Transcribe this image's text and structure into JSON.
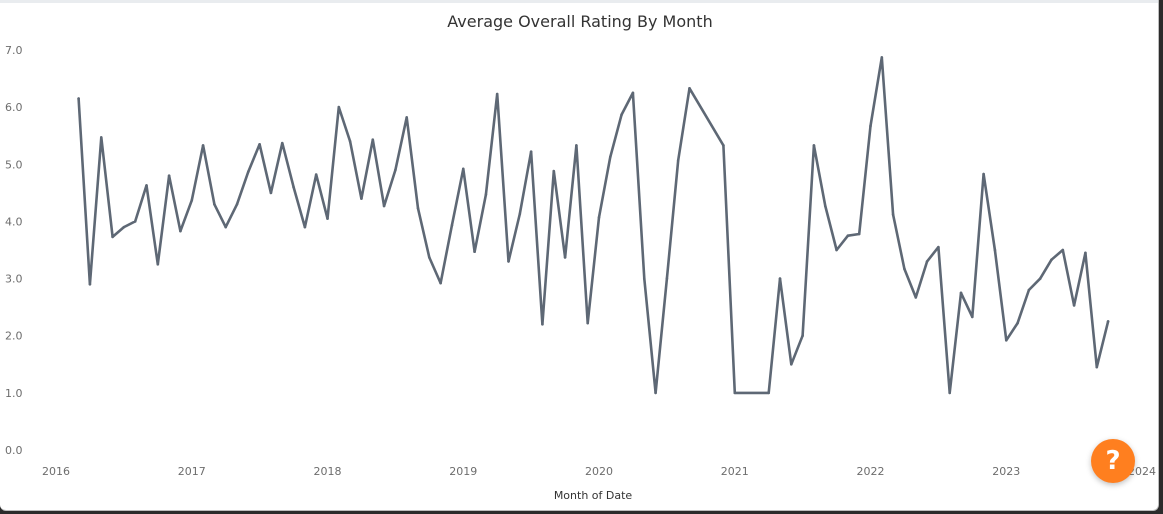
{
  "colors": {
    "line": "#5e6875",
    "help_button": "#ff7f1f"
  },
  "help_button": {
    "icon": "question-icon",
    "glyph": "?"
  },
  "chart_data": {
    "type": "line",
    "title": "Average Overall Rating By Month",
    "xlabel": "Month of Date",
    "ylabel": "",
    "ylim": [
      0,
      7
    ],
    "grid": false,
    "x_ticks": [
      "2016",
      "2017",
      "2018",
      "2019",
      "2020",
      "2021",
      "2022",
      "2023",
      "2024"
    ],
    "y_ticks": [
      "0.0",
      "1.0",
      "2.0",
      "3.0",
      "4.0",
      "5.0",
      "6.0",
      "7.0"
    ],
    "series": [
      {
        "x": [
          "2016-03",
          "2016-04",
          "2016-05",
          "2016-06",
          "2016-07",
          "2016-08",
          "2016-09",
          "2016-10",
          "2016-11",
          "2016-12",
          "2017-01",
          "2017-02",
          "2017-03",
          "2017-04",
          "2017-05",
          "2017-06",
          "2017-07",
          "2017-08",
          "2017-09",
          "2017-10",
          "2017-11",
          "2017-12",
          "2018-01",
          "2018-02",
          "2018-03",
          "2018-04",
          "2018-05",
          "2018-06",
          "2018-07",
          "2018-08",
          "2018-09",
          "2018-10",
          "2018-11",
          "2018-12",
          "2019-01",
          "2019-02",
          "2019-03",
          "2019-04",
          "2019-05",
          "2019-06",
          "2019-07",
          "2019-08",
          "2019-09",
          "2019-10",
          "2019-11",
          "2019-12",
          "2020-01",
          "2020-02",
          "2020-03",
          "2020-04",
          "2020-05",
          "2020-06",
          "2020-07",
          "2020-08",
          "2020-09",
          "2020-12",
          "2021-01",
          "2021-04",
          "2021-05",
          "2021-06",
          "2021-07",
          "2021-08",
          "2021-09",
          "2021-10",
          "2021-11",
          "2021-12",
          "2022-01",
          "2022-02",
          "2022-03",
          "2022-04",
          "2022-05",
          "2022-06",
          "2022-07",
          "2022-08",
          "2022-09",
          "2022-10",
          "2022-11",
          "2022-12",
          "2023-01",
          "2023-02",
          "2023-03",
          "2023-04",
          "2023-05",
          "2023-06",
          "2023-07",
          "2023-08",
          "2023-09",
          "2023-10"
        ],
        "values": [
          6.15,
          2.9,
          5.47,
          3.73,
          3.9,
          4.0,
          4.63,
          3.25,
          4.8,
          3.83,
          4.37,
          5.33,
          4.3,
          3.9,
          4.3,
          4.87,
          5.35,
          4.5,
          5.37,
          4.6,
          3.9,
          4.82,
          4.05,
          6.0,
          5.4,
          4.4,
          5.43,
          4.27,
          4.9,
          5.82,
          4.23,
          3.37,
          2.92,
          3.93,
          4.92,
          3.47,
          4.47,
          6.23,
          3.3,
          4.13,
          5.22,
          2.2,
          4.88,
          3.37,
          5.33,
          2.22,
          4.07,
          5.13,
          5.87,
          6.25,
          3.0,
          1.0,
          3.0,
          5.07,
          6.33,
          5.33,
          1.0,
          1.0,
          3.0,
          1.5,
          2.0,
          5.33,
          4.27,
          3.5,
          3.75,
          3.78,
          5.67,
          6.87,
          4.12,
          3.17,
          2.67,
          3.3,
          3.55,
          1.0,
          2.75,
          2.33,
          4.83,
          3.5,
          1.92,
          2.22,
          2.8,
          3.0,
          3.33,
          3.5,
          2.53,
          3.45,
          1.45,
          2.25
        ]
      }
    ]
  }
}
